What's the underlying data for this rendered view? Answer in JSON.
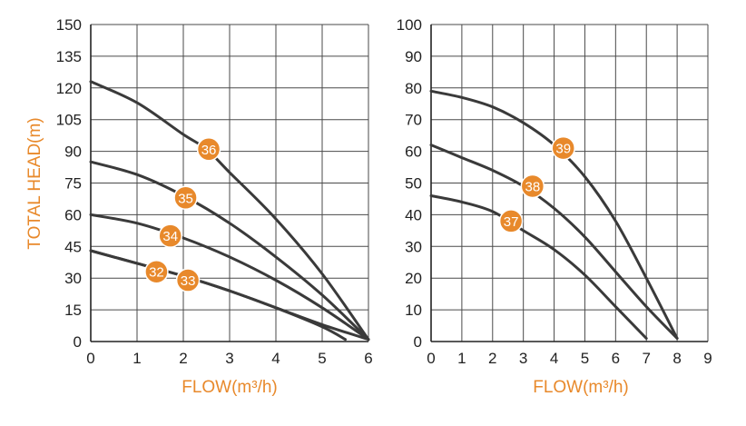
{
  "colors": {
    "accent": "#E8892B",
    "curve": "#3a3a3a",
    "grid": "#4a4a4a",
    "text": "#222222"
  },
  "chart_data": [
    {
      "type": "line",
      "xlabel": "FLOW(m³/h)",
      "ylabel": "TOTAL HEAD(m)",
      "xlim": [
        0,
        6
      ],
      "ylim": [
        0,
        150
      ],
      "x_ticks": [
        "0",
        "1",
        "2",
        "3",
        "4",
        "5",
        "6"
      ],
      "y_ticks": [
        "0",
        "15",
        "30",
        "45",
        "60",
        "75",
        "90",
        "105",
        "120",
        "135",
        "150"
      ],
      "grid": true,
      "series": [
        {
          "name": "36",
          "label_at": [
            2.55,
            91
          ],
          "x": [
            0,
            1,
            2,
            2.5,
            3,
            4,
            5,
            6
          ],
          "y": [
            123,
            113,
            98,
            91,
            80,
            58,
            32,
            1
          ]
        },
        {
          "name": "35",
          "label_at": [
            2.05,
            68
          ],
          "x": [
            0,
            1,
            2,
            3,
            4,
            5,
            6
          ],
          "y": [
            85,
            79,
            69,
            56,
            40,
            22,
            1
          ]
        },
        {
          "name": "34",
          "label_at": [
            1.72,
            50
          ],
          "x": [
            0,
            1,
            2,
            3,
            4,
            5,
            6
          ],
          "y": [
            60,
            56,
            49,
            40,
            29,
            16,
            1
          ]
        },
        {
          "name": "32",
          "label_at": [
            1.42,
            33
          ],
          "x": [
            0,
            1,
            2,
            3,
            4,
            5,
            6
          ],
          "y": [
            43,
            37,
            31,
            24,
            16,
            8,
            1
          ]
        },
        {
          "name": "33",
          "label_at": [
            2.1,
            29
          ],
          "x": [
            0,
            1,
            2,
            3,
            4,
            5,
            5.5
          ],
          "y": [
            43,
            37,
            31,
            24,
            16,
            7,
            1
          ]
        }
      ]
    },
    {
      "type": "line",
      "xlabel": "FLOW(m³/h)",
      "ylabel": "",
      "xlim": [
        0,
        9
      ],
      "ylim": [
        0,
        100
      ],
      "x_ticks": [
        "0",
        "1",
        "2",
        "3",
        "4",
        "5",
        "6",
        "7",
        "8",
        "9"
      ],
      "y_ticks": [
        "0",
        "10",
        "20",
        "30",
        "40",
        "50",
        "60",
        "70",
        "80",
        "90",
        "100"
      ],
      "grid": true,
      "series": [
        {
          "name": "39",
          "label_at": [
            4.3,
            61
          ],
          "x": [
            0,
            1,
            2,
            3,
            4,
            5,
            6,
            7,
            8
          ],
          "y": [
            79,
            77,
            74,
            69,
            62,
            52,
            38,
            20,
            1
          ]
        },
        {
          "name": "38",
          "label_at": [
            3.3,
            49
          ],
          "x": [
            0,
            1,
            2,
            3,
            4,
            5,
            6,
            7,
            8
          ],
          "y": [
            62,
            58,
            54,
            49,
            42,
            33,
            22,
            11,
            1
          ]
        },
        {
          "name": "37",
          "label_at": [
            2.6,
            38
          ],
          "x": [
            0,
            1,
            2,
            3,
            4,
            5,
            6,
            7
          ],
          "y": [
            46,
            44,
            41,
            35,
            29,
            21,
            11,
            1
          ]
        }
      ]
    }
  ]
}
